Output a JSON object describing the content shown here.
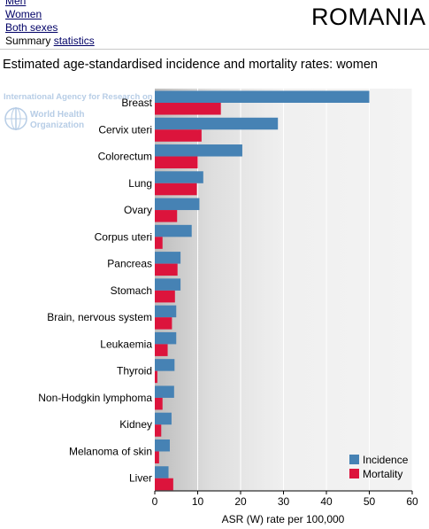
{
  "nav": {
    "men": "Men",
    "women": "Women",
    "both": "Both sexes",
    "summary_prefix": "Summary",
    "summary_link": "statistics"
  },
  "country": "ROMANIA",
  "subtitle": "Estimated age-standardised incidence and mortality rates: women",
  "watermark": {
    "iarc": "International Agency for Research on Cancer",
    "who_line1": "World Health",
    "who_line2": "Organization"
  },
  "chart_data": {
    "type": "bar",
    "orientation": "horizontal",
    "categories": [
      "Breast",
      "Cervix uteri",
      "Colorectum",
      "Lung",
      "Ovary",
      "Corpus uteri",
      "Pancreas",
      "Stomach",
      "Brain, nervous system",
      "Leukaemia",
      "Thyroid",
      "Non-Hodgkin lymphoma",
      "Kidney",
      "Melanoma of skin",
      "Liver"
    ],
    "series": [
      {
        "name": "Incidence",
        "color": "#4682b4",
        "values": [
          50.0,
          28.7,
          20.4,
          11.3,
          10.4,
          8.6,
          6.0,
          6.0,
          5.0,
          5.0,
          4.6,
          4.5,
          3.9,
          3.5,
          3.2
        ]
      },
      {
        "name": "Mortality",
        "color": "#dc143c",
        "values": [
          15.4,
          10.9,
          10.0,
          9.8,
          5.2,
          1.8,
          5.3,
          4.7,
          4.0,
          3.0,
          0.6,
          1.8,
          1.5,
          1.0,
          4.3
        ]
      }
    ],
    "xlabel": "ASR (W) rate per 100,000",
    "xlim": [
      0,
      60
    ],
    "xticks": [
      0,
      10,
      20,
      30,
      40,
      50,
      60
    ],
    "legend_position": "bottom-right",
    "grid": "vertical"
  }
}
